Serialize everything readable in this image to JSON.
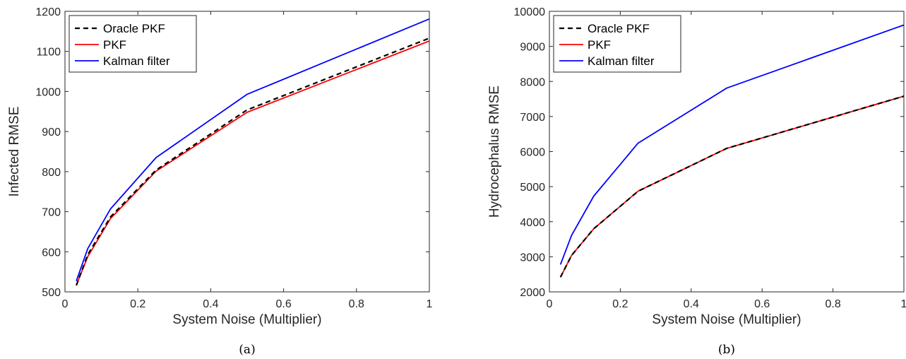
{
  "chart_data": [
    {
      "type": "line",
      "caption": "(a)",
      "xlabel": "System Noise (Multiplier)",
      "ylabel": "Infected RMSE",
      "xlim": [
        0,
        1
      ],
      "ylim": [
        500,
        1200
      ],
      "xticks": [
        0,
        0.2,
        0.4,
        0.6,
        0.8,
        1
      ],
      "xtick_labels": [
        "0",
        "0.2",
        "0.4",
        "0.6",
        "0.8",
        "1"
      ],
      "yticks": [
        500,
        600,
        700,
        800,
        900,
        1000,
        1100,
        1200
      ],
      "ytick_labels": [
        "500",
        "600",
        "700",
        "800",
        "900",
        "1000",
        "1100",
        "1200"
      ],
      "legend_position": "top-left",
      "grid": false,
      "x": [
        0.03125,
        0.0625,
        0.125,
        0.25,
        0.5,
        1
      ],
      "series": [
        {
          "name": "Kalman filter",
          "color": "#0000ff",
          "style": "solid",
          "values": [
            527,
            608,
            707,
            835,
            993,
            1181
          ]
        },
        {
          "name": "PKF",
          "color": "#ff0000",
          "style": "solid",
          "values": [
            517,
            588,
            683,
            801,
            948,
            1126
          ]
        },
        {
          "name": "Oracle PKF",
          "color": "#000000",
          "style": "dashed",
          "values": [
            516,
            593,
            687,
            804,
            954,
            1133
          ]
        }
      ],
      "legend_order": [
        "Oracle PKF",
        "PKF",
        "Kalman filter"
      ]
    },
    {
      "type": "line",
      "caption": "(b)",
      "xlabel": "System Noise (Multiplier)",
      "ylabel": "Hydrocephalus RMSE",
      "xlim": [
        0,
        1
      ],
      "ylim": [
        2000,
        10000
      ],
      "xticks": [
        0,
        0.2,
        0.4,
        0.6,
        0.8,
        1
      ],
      "xtick_labels": [
        "0",
        "0.2",
        "0.4",
        "0.6",
        "0.8",
        "1"
      ],
      "yticks": [
        2000,
        3000,
        4000,
        5000,
        6000,
        7000,
        8000,
        9000,
        10000
      ],
      "ytick_labels": [
        "2000",
        "3000",
        "4000",
        "5000",
        "6000",
        "7000",
        "8000",
        "9000",
        "10000"
      ],
      "legend_position": "top-left",
      "grid": false,
      "x": [
        0.03125,
        0.0625,
        0.125,
        0.25,
        0.5,
        1
      ],
      "series": [
        {
          "name": "Kalman filter",
          "color": "#0000ff",
          "style": "solid",
          "values": [
            2780,
            3610,
            4730,
            6240,
            7810,
            9610
          ]
        },
        {
          "name": "PKF",
          "color": "#ff0000",
          "style": "solid",
          "values": [
            2420,
            3040,
            3800,
            4870,
            6090,
            7580
          ]
        },
        {
          "name": "Oracle PKF",
          "color": "#000000",
          "style": "dashed",
          "values": [
            2420,
            3040,
            3800,
            4870,
            6090,
            7580
          ]
        }
      ],
      "legend_order": [
        "Oracle PKF",
        "PKF",
        "Kalman filter"
      ]
    }
  ]
}
